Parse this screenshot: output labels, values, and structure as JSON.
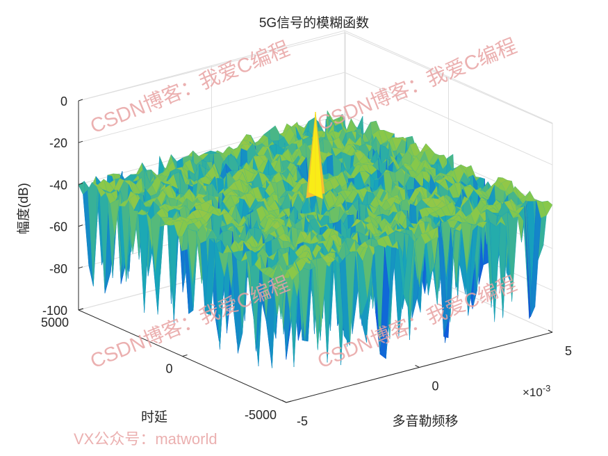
{
  "chart_data": {
    "type": "surface",
    "title": "5G信号的模糊函数",
    "xlabel": "多音勒频移",
    "ylabel": "时延",
    "zlabel": "幅度(dB)",
    "x_exponent_label": "×10",
    "x_exponent_power": "-3",
    "xlim": [
      -5,
      5
    ],
    "ylim": [
      -5000,
      5000
    ],
    "zlim": [
      -100,
      0
    ],
    "x_ticks": [
      {
        "value": -5,
        "label": "-5"
      },
      {
        "value": 0,
        "label": "0"
      },
      {
        "value": 5,
        "label": "5"
      }
    ],
    "y_ticks": [
      {
        "value": 5000,
        "label": "5000"
      },
      {
        "value": 0,
        "label": "0"
      },
      {
        "value": -5000,
        "label": "-5000"
      }
    ],
    "z_ticks": [
      {
        "value": 0,
        "label": "0"
      },
      {
        "value": -20,
        "label": "-20"
      },
      {
        "value": -40,
        "label": "-40"
      },
      {
        "value": -60,
        "label": "-60"
      },
      {
        "value": -80,
        "label": "-80"
      },
      {
        "value": -100,
        "label": "-100"
      }
    ],
    "grid": true,
    "colormap": "parula",
    "peak": {
      "x": 0,
      "y": 0,
      "z": 0
    },
    "sidelobe_level_db": -40
  },
  "watermarks": [
    {
      "text": "CSDN博客：我爱C编程"
    },
    {
      "text": "CSDN博客：我爱C编程"
    },
    {
      "text": "CSDN博客：我爱C编程"
    },
    {
      "text": "CSDN博客：我爱C编程"
    }
  ],
  "footer_watermark": "VX公众号：matworld",
  "colors": {
    "axis": "#262626",
    "grid": "#dedede",
    "watermark": "#e8a3a3",
    "surface_high": "#f9e21d",
    "surface_mid": "#86c84a",
    "surface_low": "#18a8b8"
  }
}
